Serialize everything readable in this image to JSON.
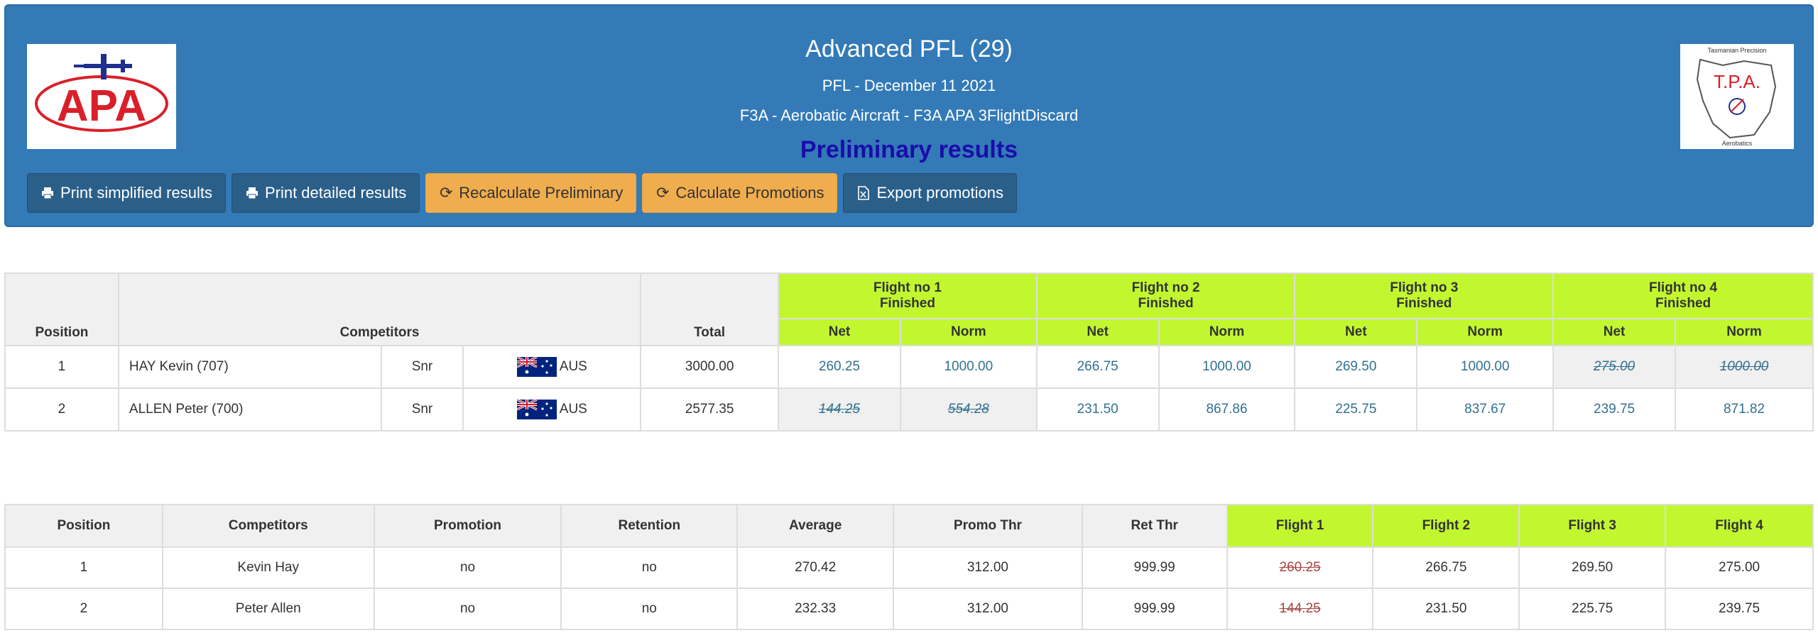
{
  "header": {
    "title": "Advanced PFL (29)",
    "subtitle1": "PFL - December 11 2021",
    "subtitle2": "F3A - Aerobatic Aircraft - F3A APA 3FlightDiscard",
    "status": "Preliminary results",
    "left_logo_text": "APA",
    "right_logo": {
      "top": "Tasmanian Precision",
      "mid": "T.P.A.",
      "bottom": "Aerobatics"
    },
    "buttons": [
      {
        "label": "Print simplified results",
        "icon": "print-icon"
      },
      {
        "label": "Print detailed results",
        "icon": "print-icon"
      },
      {
        "label": "Recalculate Preliminary",
        "icon": "refresh-icon"
      },
      {
        "label": "Calculate Promotions",
        "icon": "refresh-icon"
      },
      {
        "label": "Export promotions",
        "icon": "file-excel-icon"
      }
    ]
  },
  "results": {
    "headers": {
      "position": "Position",
      "competitors": "Competitors",
      "total": "Total",
      "net": "Net",
      "norm": "Norm"
    },
    "flights": [
      {
        "title": "Flight no 1",
        "status": "Finished"
      },
      {
        "title": "Flight no 2",
        "status": "Finished"
      },
      {
        "title": "Flight no 3",
        "status": "Finished"
      },
      {
        "title": "Flight no 4",
        "status": "Finished"
      }
    ],
    "rows": [
      {
        "position": "1",
        "name": "HAY Kevin (707)",
        "class": "Snr",
        "country": "AUS",
        "total": "3000.00",
        "f1_net": "260.25",
        "f1_norm": "1000.00",
        "f2_net": "266.75",
        "f2_norm": "1000.00",
        "f3_net": "269.50",
        "f3_norm": "1000.00",
        "f4_net": "275.00",
        "f4_norm": "1000.00"
      },
      {
        "position": "2",
        "name": "ALLEN Peter (700)",
        "class": "Snr",
        "country": "AUS",
        "total": "2577.35",
        "f1_net": "144.25",
        "f1_norm": "554.28",
        "f2_net": "231.50",
        "f2_norm": "867.86",
        "f3_net": "225.75",
        "f3_norm": "837.67",
        "f4_net": "239.75",
        "f4_norm": "871.82"
      }
    ]
  },
  "promotions": {
    "headers": {
      "position": "Position",
      "competitors": "Competitors",
      "promotion": "Promotion",
      "retention": "Retention",
      "average": "Average",
      "promo_thr": "Promo Thr",
      "ret_thr": "Ret Thr",
      "flight1": "Flight 1",
      "flight2": "Flight 2",
      "flight3": "Flight 3",
      "flight4": "Flight 4"
    },
    "rows": [
      {
        "position": "1",
        "name": "Kevin Hay",
        "promotion": "no",
        "retention": "no",
        "average": "270.42",
        "promo_thr": "312.00",
        "ret_thr": "999.99",
        "f1": "260.25",
        "f2": "266.75",
        "f3": "269.50",
        "f4": "275.00"
      },
      {
        "position": "2",
        "name": "Peter Allen",
        "promotion": "no",
        "retention": "no",
        "average": "232.33",
        "promo_thr": "312.00",
        "ret_thr": "999.99",
        "f1": "144.25",
        "f2": "231.50",
        "f3": "225.75",
        "f4": "239.75"
      }
    ]
  },
  "colors": {
    "header_bg": "#337ab7",
    "flight_header_green": "#c2f730",
    "status_blue": "#1a0dab",
    "warning_button": "#f0ad4e",
    "discarded_text": "#a94442"
  }
}
